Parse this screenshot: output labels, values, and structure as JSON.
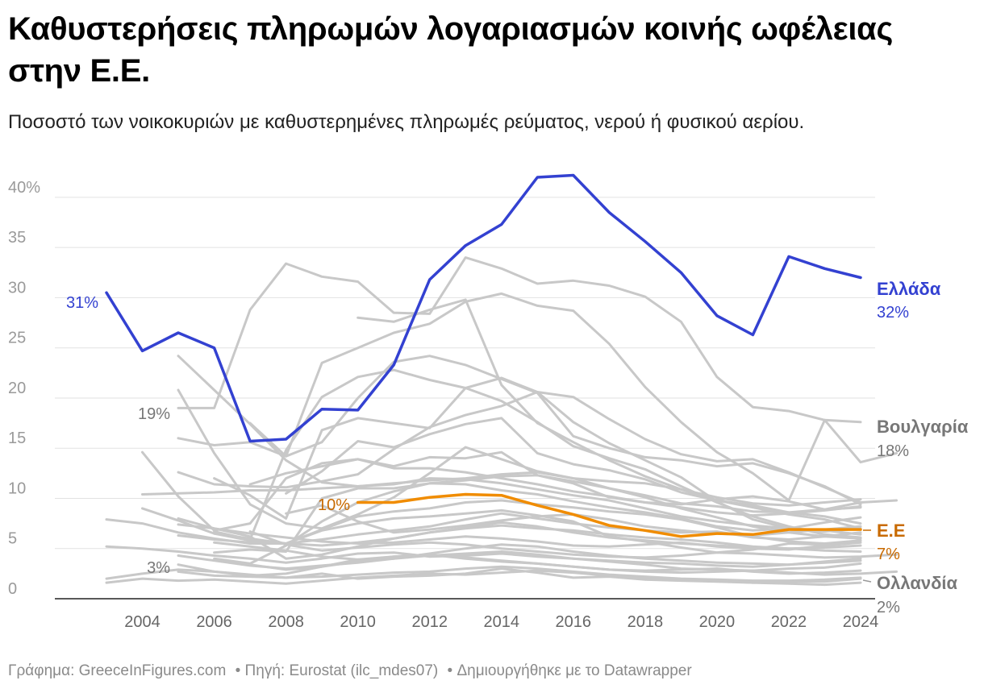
{
  "title": "Καθυστερήσεις πληρωμών λογαριασμών κοινής ωφέλειας στην Ε.Ε.",
  "subtitle": "Ποσοστό των νοικοκυριών με καθυστερημένες πληρωμές ρεύματος, νερού ή φυσικού αερίου.",
  "footer": {
    "graph": "Γράφημα: GreeceInFigures.com",
    "source": "• Πηγή: Eurostat (ilc_mdes07)",
    "created": "• Δημιουργήθηκε με το Datawrapper"
  },
  "colors": {
    "greece": "#3341d1",
    "eu": "#f08c00",
    "eu_label": "#c86a00",
    "others": "#c8c8c8",
    "label_grey": "#777777"
  },
  "chart_data": {
    "type": "line",
    "title": "Καθυστερήσεις πληρωμών λογαριασμών κοινής ωφέλειας στην Ε.Ε.",
    "ylim": [
      0,
      42
    ],
    "yticks": [
      0,
      5,
      10,
      15,
      20,
      25,
      30,
      35,
      40
    ],
    "ytick_labels": [
      "0",
      "5",
      "10",
      "15",
      "20",
      "25",
      "30",
      "35",
      "40%"
    ],
    "xlim": [
      2003,
      2024
    ],
    "xticks": [
      2004,
      2006,
      2008,
      2010,
      2012,
      2014,
      2016,
      2018,
      2020,
      2022,
      2024
    ],
    "xtick_labels": [
      "2004",
      "2006",
      "2008",
      "2010",
      "2012",
      "2014",
      "2016",
      "2018",
      "2020",
      "2022",
      "2024"
    ],
    "grid": true,
    "series": [
      {
        "name": "Ελλάδα",
        "highlight": "greece",
        "start": 2003,
        "values": [
          30.5,
          24.7,
          26.5,
          25.0,
          15.7,
          15.9,
          18.9,
          18.8,
          23.3,
          31.8,
          35.2,
          37.3,
          42.0,
          42.2,
          38.5,
          35.6,
          32.5,
          28.2,
          26.3,
          34.1,
          32.9,
          32.0
        ],
        "start_label": "31%",
        "end_label": "32%"
      },
      {
        "name": "Ε.Ε",
        "highlight": "eu",
        "start": 2010,
        "values": [
          9.6,
          9.6,
          10.1,
          10.4,
          10.3,
          9.3,
          8.4,
          7.3,
          6.8,
          6.2,
          6.5,
          6.4,
          6.9,
          6.9,
          6.9
        ],
        "start_label": "10%",
        "end_label": "7%"
      },
      {
        "name": "Βουλγαρία",
        "highlight": "labeled",
        "start": 2005,
        "values": [
          19.0,
          19.0,
          28.8,
          33.4,
          32.1,
          31.6,
          28.5,
          28.4,
          34.0,
          32.9,
          31.4,
          31.7,
          31.2,
          30.1,
          27.6,
          22.1,
          19.1,
          18.7,
          17.8,
          17.6
        ],
        "start_label": "19%",
        "end_label": "18%"
      },
      {
        "name": "Ολλανδία",
        "highlight": "labeled",
        "start": 2005,
        "values": [
          2.7,
          2.3,
          2.2,
          2.1,
          2.5,
          2.0,
          2.2,
          2.3,
          2.5,
          3.0,
          2.6,
          2.1,
          2.2,
          1.9,
          1.8,
          1.7,
          1.6,
          1.7,
          1.7,
          2.0
        ],
        "start_label": "3%",
        "end_label": "2%"
      },
      {
        "start": 2003,
        "values": [
          7.9,
          7.5,
          6.6,
          6.0,
          5.5,
          5.5,
          6.8,
          7.5,
          8.0,
          8.2,
          8.5,
          8.8,
          8.3,
          7.7,
          6.2,
          5.7,
          5.1,
          4.6,
          4.9,
          5.5,
          5.4,
          5.8
        ]
      },
      {
        "start": 2003,
        "values": [
          5.2,
          5.0,
          4.7,
          4.3,
          4.0,
          3.6,
          4.0,
          4.5,
          4.6,
          4.2,
          4.3,
          4.5,
          4.2,
          4.0,
          3.7,
          3.4,
          3.0,
          2.9,
          2.8,
          3.0,
          3.1,
          3.5
        ]
      },
      {
        "start": 2003,
        "values": [
          2.0,
          2.5,
          2.9,
          2.7,
          2.4,
          2.1,
          2.2,
          2.4,
          2.6,
          2.7,
          3.0,
          3.2,
          3.0,
          2.7,
          2.4,
          2.2,
          2.0,
          1.9,
          1.8,
          1.8,
          1.9,
          2.1
        ]
      },
      {
        "start": 2003,
        "values": [
          1.6,
          2.0,
          1.8,
          1.9,
          1.7,
          1.5,
          1.8,
          2.1,
          2.3,
          2.5,
          2.4,
          2.6,
          2.8,
          2.6,
          2.3,
          2.1,
          1.9,
          1.8,
          1.6,
          1.5,
          1.4,
          1.6
        ]
      },
      {
        "start": 2004,
        "values": [
          14.6,
          10.2,
          6.8,
          7.5,
          12.0,
          13.5,
          13.9,
          13.2,
          14.1,
          14.0,
          14.6,
          12.3,
          11.5,
          10.1,
          9.6,
          9.1,
          8.6,
          8.3,
          8.5,
          8.8,
          9.2
        ]
      },
      {
        "start": 2004,
        "values": [
          10.4,
          10.5,
          10.6,
          10.8,
          10.8,
          11.0,
          11.2,
          11.5,
          11.8,
          12.0,
          12.4,
          12.6,
          12.0,
          11.0,
          10.3,
          9.5,
          9.2,
          8.7,
          8.6,
          8.9,
          9.1
        ]
      },
      {
        "start": 2004,
        "values": [
          9.0,
          7.8,
          6.5,
          6.0,
          5.5,
          5.3,
          5.6,
          6.0,
          6.6,
          7.0,
          7.3,
          7.0,
          6.8,
          6.4,
          6.1,
          5.9,
          5.6,
          5.2,
          5.0,
          5.1,
          5.3
        ]
      },
      {
        "start": 2005,
        "values": [
          24.2,
          20.8,
          17.4,
          13.8,
          11.6,
          11.2,
          11.4,
          12.0,
          11.9,
          11.5,
          10.9,
          10.3,
          9.8,
          9.0,
          8.2,
          7.7,
          7.3,
          7.0,
          6.8,
          6.4
        ]
      },
      {
        "start": 2005,
        "values": [
          20.8,
          14.5,
          9.4,
          7.5,
          7.0,
          8.4,
          10.1,
          12.5,
          15.1,
          13.9,
          12.7,
          12.0,
          11.7,
          11.5,
          10.9,
          10.1,
          9.5,
          9.3,
          9.6,
          9.9
        ]
      },
      {
        "start": 2005,
        "values": [
          16.0,
          15.3,
          15.6,
          14.2,
          15.6,
          20.0,
          23.6,
          24.2,
          23.3,
          21.9,
          20.5,
          16.2,
          15.0,
          14.1,
          13.8,
          13.2,
          13.5,
          12.5,
          11.2,
          9.4
        ]
      },
      {
        "start": 2005,
        "values": [
          12.6,
          11.4,
          11.2,
          11.1,
          11.7,
          12.4,
          14.9,
          17.1,
          18.3,
          19.2,
          20.6,
          20.1,
          17.9,
          15.9,
          14.4,
          13.7,
          13.9,
          12.6,
          11.1,
          9.6
        ]
      },
      {
        "start": 2005,
        "values": [
          8.0,
          7.0,
          6.2,
          4.0,
          4.4,
          5.2,
          6.0,
          6.6,
          7.1,
          7.6,
          7.2,
          6.6,
          6.1,
          5.8,
          5.5,
          5.3,
          5.1,
          5.0,
          4.8,
          4.7
        ]
      },
      {
        "start": 2005,
        "values": [
          6.3,
          5.9,
          5.6,
          5.5,
          5.9,
          6.4,
          6.8,
          7.2,
          7.9,
          8.5,
          8.0,
          7.5,
          7.1,
          6.8,
          6.6,
          6.7,
          6.1,
          5.9,
          6.2,
          6.6
        ]
      },
      {
        "start": 2005,
        "values": [
          4.3,
          3.8,
          3.3,
          3.0,
          3.3,
          3.6,
          4.0,
          4.3,
          4.5,
          4.7,
          4.4,
          4.0,
          3.8,
          3.6,
          3.5,
          3.3,
          3.2,
          3.4,
          3.6,
          3.8
        ]
      },
      {
        "start": 2005,
        "values": [
          3.4,
          2.7,
          2.3,
          2.5,
          3.2,
          3.9,
          4.2,
          4.4,
          4.1,
          3.8,
          3.5,
          3.2,
          2.9,
          2.8,
          2.9,
          3.0,
          2.7,
          2.5,
          2.6,
          2.8
        ]
      },
      {
        "start": 2005,
        "values": [
          7.4,
          7.0,
          6.5,
          6.1,
          5.7,
          5.5,
          5.6,
          5.9,
          6.2,
          6.0,
          5.7,
          5.3,
          5.2,
          5.4,
          5.6,
          5.2,
          5.0,
          4.9,
          5.3,
          5.6
        ]
      },
      {
        "start": 2006,
        "values": [
          12.0,
          10.3,
          8.0,
          16.8,
          18.0,
          17.5,
          17.0,
          21.0,
          22.0,
          20.6,
          17.6,
          15.5,
          13.8,
          12.1,
          9.7,
          7.9,
          7.0,
          6.7,
          7.0
        ]
      },
      {
        "start": 2006,
        "values": [
          6.7,
          5.9,
          14.8,
          20.1,
          22.1,
          22.8,
          21.8,
          21.0,
          19.7,
          17.6,
          15.2,
          14.0,
          12.9,
          11.2,
          9.6,
          8.2,
          7.2,
          6.4,
          6.1
        ]
      },
      {
        "start": 2006,
        "values": [
          4.6,
          4.9,
          4.7,
          10.0,
          11.0,
          11.0,
          11.5,
          11.4,
          10.8,
          10.4,
          9.7,
          9.1,
          8.6,
          8.0,
          7.2,
          6.8,
          7.0,
          7.6,
          8.1
        ]
      },
      {
        "start": 2006,
        "values": [
          4.0,
          3.5,
          5.3,
          7.7,
          9.6,
          10.7,
          11.5,
          11.8,
          12.2,
          12.3,
          11.7,
          11.0,
          10.1,
          9.0,
          8.1,
          7.2,
          6.6,
          6.2,
          6.0
        ]
      },
      {
        "start": 2006,
        "values": [
          6.5,
          5.8,
          5.5,
          6.9,
          8.2,
          8.7,
          9.0,
          9.6,
          9.8,
          9.4,
          9.1,
          8.7,
          8.4,
          7.9,
          7.1,
          6.2,
          5.7,
          5.5,
          5.8
        ]
      },
      {
        "start": 2006,
        "values": [
          5.6,
          5.2,
          4.8,
          4.2,
          3.9,
          4.0,
          4.5,
          5.0,
          5.4,
          5.2,
          4.7,
          4.3,
          4.0,
          3.8,
          3.6,
          3.5,
          3.4,
          3.7,
          4.0
        ]
      },
      {
        "start": 2007,
        "values": [
          17.5,
          14.2,
          23.5,
          25.0,
          26.5,
          27.4,
          29.6,
          30.4,
          29.2,
          28.7,
          25.4,
          21.1,
          17.6,
          14.6,
          12.5,
          9.8,
          17.8,
          13.6,
          14.5
        ]
      },
      {
        "start": 2007,
        "values": [
          11.4,
          12.5,
          13.2,
          13.9,
          13.0,
          13.0,
          12.6,
          12.0,
          11.4,
          10.7,
          10.2,
          9.6,
          9.4,
          9.9,
          10.2,
          9.7,
          8.9,
          9.6,
          9.8
        ]
      },
      {
        "start": 2007,
        "values": [
          6.7,
          5.4,
          4.8,
          5.1,
          5.4,
          5.6,
          5.4,
          5.0,
          4.7,
          4.4,
          4.2,
          4.1,
          4.3,
          4.6,
          4.5,
          4.3,
          4.1,
          4.2,
          4.4
        ]
      },
      {
        "start": 2007,
        "values": [
          3.4,
          2.9,
          3.2,
          3.7,
          4.2,
          4.4,
          4.0,
          3.7,
          3.5,
          3.2,
          2.9,
          2.7,
          2.6,
          2.7,
          2.8,
          2.6,
          2.4,
          2.5,
          2.7
        ]
      },
      {
        "start": 2008,
        "values": [
          10.5,
          12.7,
          15.7,
          15.1,
          16.4,
          17.4,
          18.0,
          14.5,
          13.4,
          12.8,
          11.9,
          10.6,
          9.8,
          9.3,
          8.6,
          8.2,
          7.5
        ]
      },
      {
        "start": 2008,
        "values": [
          8.5,
          9.3,
          7.7,
          6.6,
          6.9,
          7.3,
          7.8,
          8.2,
          8.4,
          7.9,
          7.2,
          6.8,
          6.5,
          6.3,
          6.6,
          6.9,
          7.2
        ]
      },
      {
        "start": 2010,
        "values": [
          28.0,
          27.6,
          28.8,
          29.8,
          21.3,
          17.5,
          15.6,
          13.8,
          12.2,
          10.9,
          9.8,
          9.1,
          8.4,
          7.9,
          7.0
        ]
      }
    ]
  },
  "end_labels": {
    "greece_name": "Ελλάδα",
    "greece_value": "32%",
    "bulgaria_name": "Βουλγαρία",
    "bulgaria_value": "18%",
    "eu_name": "Ε.Ε",
    "eu_value": "7%",
    "nl_name": "Ολλανδία",
    "nl_value": "2%"
  },
  "start_labels": {
    "greece": "31%",
    "bulgaria": "19%",
    "nl": "3%",
    "eu": "10%"
  }
}
